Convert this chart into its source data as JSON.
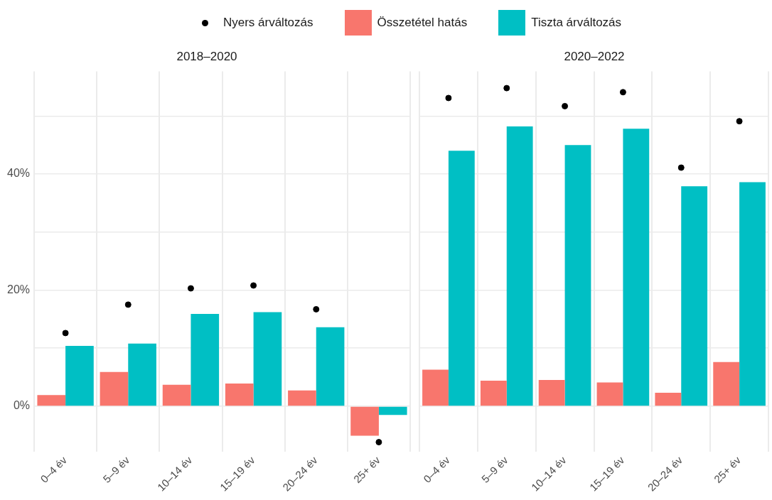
{
  "chart_data": [
    {
      "type": "bar",
      "title": "2018–2020",
      "categories": [
        "0–4 év",
        "5–9 év",
        "10–14 év",
        "15–19 év",
        "20–24 év",
        "25+ év"
      ],
      "series": [
        {
          "name": "Nyers árváltozás",
          "type": "scatter",
          "color": "#000000",
          "x": [
            "0–4 év",
            "5–9 év",
            "10–14 év",
            "15–19 év",
            "20–24 év",
            "25+ év"
          ],
          "values": [
            12.6,
            17.5,
            20.3,
            20.8,
            16.7,
            -6.2
          ]
        },
        {
          "name": "Összetétel hatás",
          "color": "#f8766d",
          "values": [
            1.9,
            5.9,
            3.7,
            3.9,
            2.7,
            -5.1
          ]
        },
        {
          "name": "Tiszta árváltozás",
          "color": "#00bfc4",
          "values": [
            10.4,
            10.8,
            15.9,
            16.2,
            13.6,
            -1.5
          ]
        }
      ],
      "ylim": [
        -7.8,
        57.7
      ],
      "yticks": [
        {
          "value": 0,
          "label": "0%"
        },
        {
          "value": 10,
          "label": null
        },
        {
          "value": 20,
          "label": "20%"
        },
        {
          "value": 30,
          "label": null
        },
        {
          "value": 40,
          "label": "40%"
        },
        {
          "value": 50,
          "label": null
        }
      ],
      "grid": true,
      "legend": "top",
      "marker": "circle"
    },
    {
      "type": "bar",
      "title": "2020–2022",
      "categories": [
        "0–4 év",
        "5–9 év",
        "10–14 év",
        "15–19 év",
        "20–24 év",
        "25+ év"
      ],
      "series": [
        {
          "type": "scatter",
          "color": "#000000",
          "x": [
            "0–4 év",
            "5–9 év",
            "10–14 év",
            "15–19 év",
            "20–24 év",
            "25+ év"
          ],
          "values": [
            53.1,
            54.8,
            51.7,
            54.1,
            41.1,
            49.1
          ]
        },
        {
          "color": "#f8766d",
          "values": [
            6.3,
            4.4,
            4.5,
            4.1,
            2.3,
            7.6
          ]
        },
        {
          "color": "#00bfc4",
          "values": [
            44.0,
            48.2,
            45.0,
            47.8,
            37.9,
            38.6
          ]
        }
      ],
      "ylim": [
        -7.8,
        57.7
      ],
      "yticks": [
        {
          "value": 0,
          "label": null
        },
        {
          "value": 10,
          "label": null
        },
        {
          "value": 20,
          "label": null
        },
        {
          "value": 30,
          "label": null
        },
        {
          "value": 40,
          "label": null
        },
        {
          "value": 50,
          "label": null
        }
      ],
      "grid": true,
      "tick_labels": "x",
      "marker": "circle"
    }
  ]
}
